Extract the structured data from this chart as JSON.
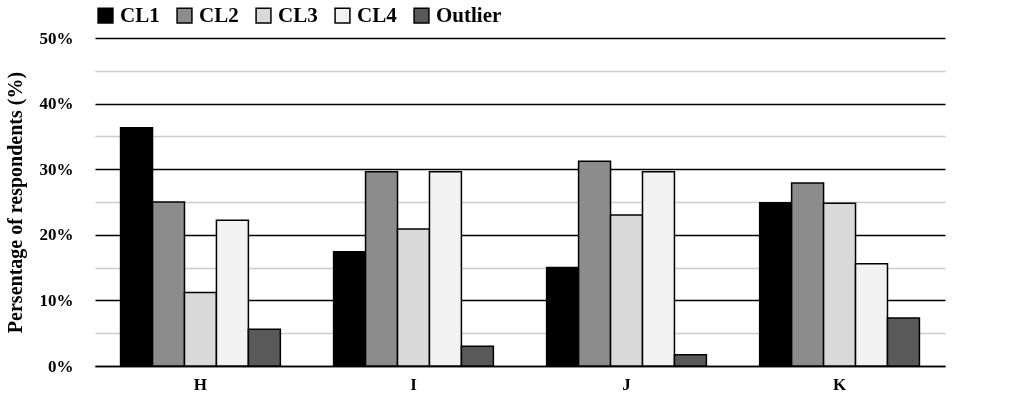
{
  "chart_data": {
    "type": "bar",
    "ylabel": "Persentage of respondents (%)",
    "categories": [
      "H",
      "I",
      "J",
      "K"
    ],
    "series": [
      {
        "name": "CL1",
        "color": "#000000",
        "values": [
          36.3,
          17.4,
          15.0,
          24.9
        ]
      },
      {
        "name": "CL2",
        "color": "#8c8c8c",
        "values": [
          25.0,
          29.6,
          31.2,
          27.9
        ]
      },
      {
        "name": "CL3",
        "color": "#d9d9d9",
        "values": [
          11.2,
          20.9,
          23.0,
          24.8
        ]
      },
      {
        "name": "CL4",
        "color": "#f2f2f2",
        "values": [
          22.2,
          29.6,
          29.6,
          15.6
        ]
      },
      {
        "name": "Outlier",
        "color": "#595959",
        "values": [
          5.6,
          3.0,
          1.7,
          7.3
        ]
      }
    ],
    "ylim": [
      0,
      50
    ],
    "yticks": [
      {
        "value": 0,
        "label": "0%"
      },
      {
        "value": 5,
        "label": null
      },
      {
        "value": 10,
        "label": "10%"
      },
      {
        "value": 15,
        "label": null
      },
      {
        "value": 20,
        "label": "20%"
      },
      {
        "value": 25,
        "label": null
      },
      {
        "value": 30,
        "label": "30%"
      },
      {
        "value": 35,
        "label": null
      },
      {
        "value": 40,
        "label": "40%"
      },
      {
        "value": 45,
        "label": null
      },
      {
        "value": 50,
        "label": "50%"
      }
    ],
    "grid": true,
    "legend": "top"
  }
}
